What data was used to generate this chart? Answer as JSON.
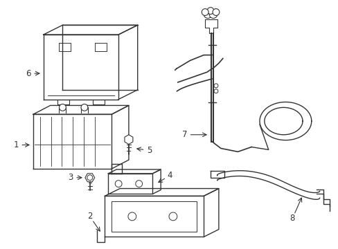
{
  "background_color": "#ffffff",
  "line_color": "#333333",
  "line_width": 1.0,
  "label_fontsize": 8.5
}
